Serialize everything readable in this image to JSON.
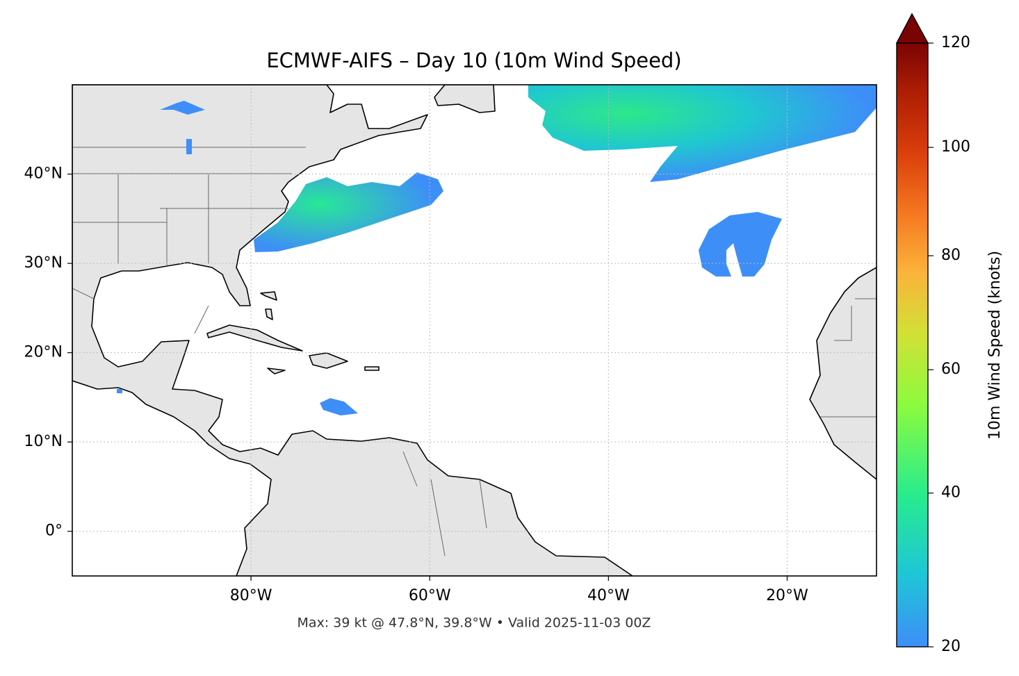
{
  "chart_data": {
    "type": "map",
    "title": "ECMWF-AIFS – Day 10 (10m Wind Speed)",
    "footer": "Max: 39 kt @ 47.8°N, 39.8°W • Valid 2025-11-03 00Z",
    "xlim": [
      -100,
      -10
    ],
    "ylim": [
      -5,
      50
    ],
    "xticks": [
      {
        "value": -80,
        "label": "80°W"
      },
      {
        "value": -60,
        "label": "60°W"
      },
      {
        "value": -40,
        "label": "40°W"
      },
      {
        "value": -20,
        "label": "20°W"
      }
    ],
    "yticks": [
      {
        "value": 0,
        "label": "0°"
      },
      {
        "value": 10,
        "label": "10°N"
      },
      {
        "value": 20,
        "label": "20°N"
      },
      {
        "value": 30,
        "label": "30°N"
      },
      {
        "value": 40,
        "label": "40°N"
      }
    ],
    "grid": true,
    "colorbar": {
      "label": "10m Wind Speed (knots)",
      "lim": [
        20,
        120
      ],
      "ticks": [
        20,
        40,
        60,
        80,
        100,
        120
      ]
    }
  }
}
